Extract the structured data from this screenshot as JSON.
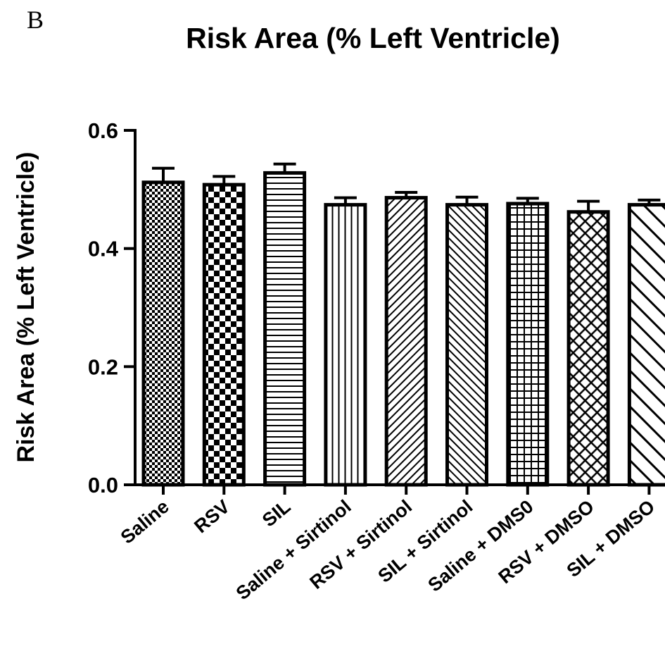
{
  "panel_label": "B",
  "chart_data": {
    "type": "bar",
    "title": "Risk Area (% Left Ventricle)",
    "xlabel": "",
    "ylabel": "Risk Area (% Left Ventricle)",
    "ylim": [
      0,
      0.6
    ],
    "yticks": [
      "0.0",
      "0.2",
      "0.4",
      "0.6"
    ],
    "categories": [
      "Saline",
      "RSV",
      "SIL",
      "Saline + Sirtinol",
      "RSV + Sirtinol",
      "SIL + Sirtinol",
      "Saline + DMS0",
      "RSV + DMSO",
      "SIL + DMSO"
    ],
    "values": [
      0.512,
      0.508,
      0.528,
      0.474,
      0.486,
      0.474,
      0.476,
      0.462,
      0.474
    ],
    "errors": [
      0.024,
      0.014,
      0.015,
      0.012,
      0.009,
      0.013,
      0.009,
      0.018,
      0.008
    ],
    "patterns": [
      "fine-check",
      "check",
      "horizontal",
      "vertical",
      "diag-up",
      "diag-down",
      "grid",
      "diamond",
      "wide-diag-down"
    ],
    "grid": false,
    "legend": "none",
    "bar_fill": "#ffffff",
    "stroke": "#000000"
  }
}
